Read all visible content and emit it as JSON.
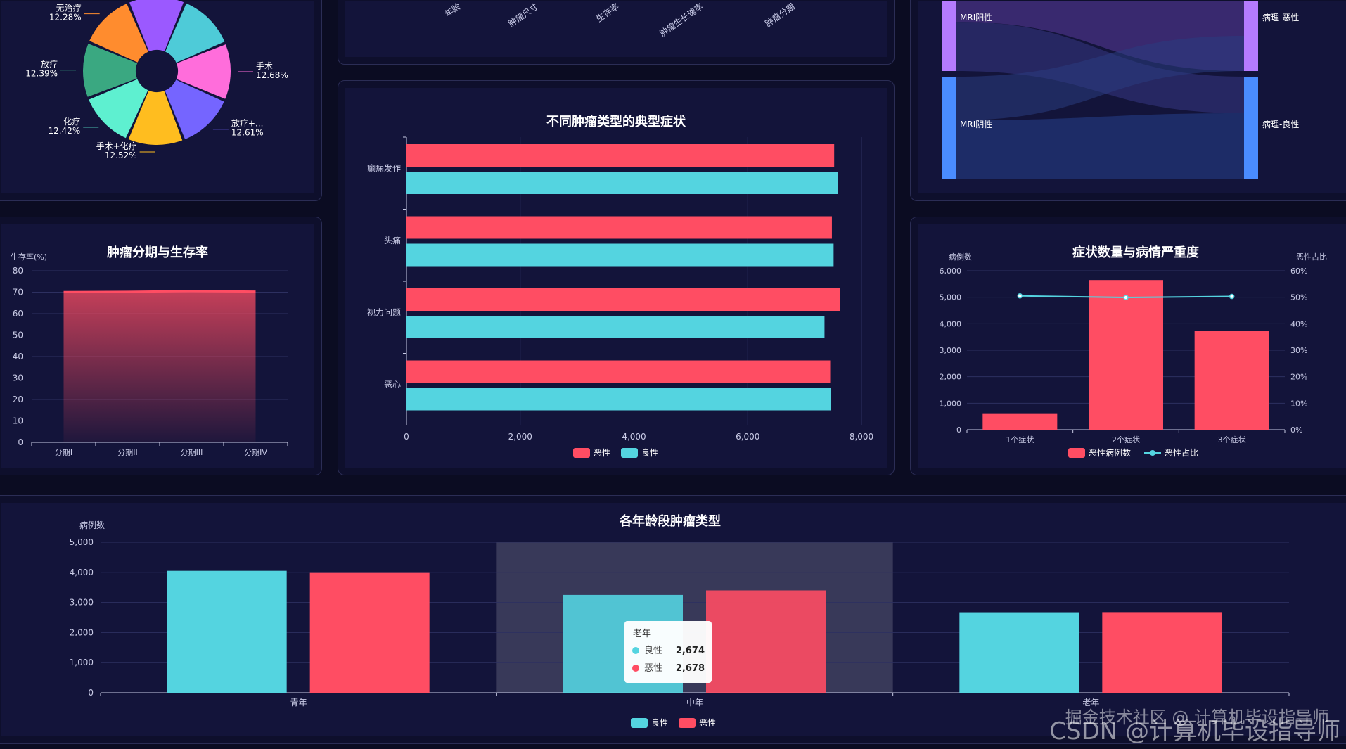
{
  "colors": {
    "malignant": "#ff4d63",
    "benign": "#54d4e0",
    "line": "#54d4e0",
    "panel": "#13143a",
    "grid": "#2d3060",
    "axis": "#c9cbe6"
  },
  "top_center": {
    "tick_labels": [
      "年龄",
      "肿瘤尺寸",
      "生存率",
      "肿瘤生长速率",
      "肿瘤分期"
    ]
  },
  "chart_data": [
    {
      "id": "pie",
      "type": "pie",
      "slices": [
        {
          "name": "无治疗",
          "value": 12.28,
          "label": "12.28%",
          "color": "#ff8c2e"
        },
        {
          "name": "",
          "value": 12.6,
          "label": "",
          "color": "#9b59ff"
        },
        {
          "name": "",
          "value": 12.6,
          "label": "",
          "color": "#4ecbd8"
        },
        {
          "name": "手术",
          "value": 12.68,
          "label": "12.68%",
          "color": "#ff6ddb"
        },
        {
          "name": "放疗+...",
          "value": 12.61,
          "label": "12.61%",
          "color": "#7565ff"
        },
        {
          "name": "手术+化疗",
          "value": 12.52,
          "label": "12.52%",
          "color": "#ffbd1f"
        },
        {
          "name": "化疗",
          "value": 12.42,
          "label": "12.42%",
          "color": "#5ef0d0"
        },
        {
          "name": "放疗",
          "value": 12.39,
          "label": "12.39%",
          "color": "#3aa881"
        }
      ]
    },
    {
      "id": "hbar",
      "type": "bar",
      "orientation": "horizontal",
      "title": "不同肿瘤类型的典型症状",
      "categories": [
        "癫痫发作",
        "头痛",
        "视力问题",
        "恶心"
      ],
      "series": [
        {
          "name": "恶性",
          "values": [
            7520,
            7480,
            7620,
            7450
          ]
        },
        {
          "name": "良性",
          "values": [
            7580,
            7510,
            7350,
            7460
          ]
        }
      ],
      "xlim": [
        0,
        8000
      ],
      "xticks": [
        "0",
        "2,000",
        "4,000",
        "6,000",
        "8,000"
      ],
      "legend": "bottom-center"
    },
    {
      "id": "sankey",
      "type": "sankey",
      "left_nodes": [
        "MRI阳性",
        "MRI阴性"
      ],
      "right_nodes": [
        "病理-恶性",
        "病理-良性"
      ]
    },
    {
      "id": "survival",
      "type": "area",
      "title": "肿瘤分期与生存率",
      "ylabel": "生存率(%)",
      "categories": [
        "分期I",
        "分期II",
        "分期III",
        "分期IV"
      ],
      "values": [
        70.1,
        70.2,
        70.5,
        70.3
      ],
      "ylim": [
        0,
        80
      ],
      "yticks": [
        "0",
        "10",
        "20",
        "30",
        "40",
        "50",
        "60",
        "70",
        "80"
      ]
    },
    {
      "id": "severity",
      "type": "bar",
      "title": "症状数量与病情严重度",
      "ylabel": "病例数",
      "ylabel_right": "恶性占比",
      "categories": [
        "1个症状",
        "2个症状",
        "3个症状"
      ],
      "series": [
        {
          "name": "恶性病例数",
          "values": [
            620,
            5650,
            3730
          ]
        },
        {
          "name": "恶性占比",
          "values": [
            50.5,
            49.9,
            50.3
          ]
        }
      ],
      "ylim": [
        0,
        6000
      ],
      "yticks": [
        "0",
        "1,000",
        "2,000",
        "3,000",
        "4,000",
        "5,000",
        "6,000"
      ],
      "yticks_right": [
        "0%",
        "10%",
        "20%",
        "30%",
        "40%",
        "50%",
        "60%"
      ],
      "legend": "bottom-center"
    },
    {
      "id": "age",
      "type": "bar",
      "title": "各年龄段肿瘤类型",
      "ylabel": "病例数",
      "categories": [
        "青年",
        "中年",
        "老年"
      ],
      "series": [
        {
          "name": "良性",
          "values": [
            4050,
            3250,
            2674
          ]
        },
        {
          "name": "恶性",
          "values": [
            3980,
            3400,
            2678
          ]
        }
      ],
      "ylim": [
        0,
        5000
      ],
      "yticks": [
        "0",
        "1,000",
        "2,000",
        "3,000",
        "4,000",
        "5,000"
      ],
      "legend": "bottom-center",
      "tooltip": {
        "title": "老年",
        "rows": [
          {
            "name": "良性",
            "value": "2,674"
          },
          {
            "name": "恶性",
            "value": "2,678"
          }
        ]
      }
    }
  ],
  "watermark": "CSDN @计算机毕设指导师",
  "watermark_overlay": "掘金技术社区 @ 计算机毕设指导师"
}
